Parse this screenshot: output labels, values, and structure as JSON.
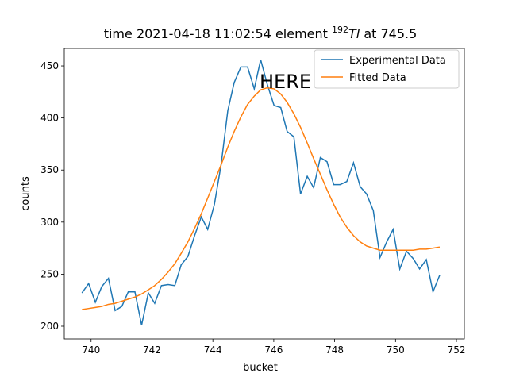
{
  "chart_data": {
    "type": "line",
    "title": {
      "lead": "time 2021-04-18 11:02:54 element ",
      "sup": "192",
      "symbol": "Tl",
      "tail": " at 745.5"
    },
    "x_label": "bucket",
    "y_label": "counts",
    "annotation": "HERE",
    "annotation_color": "#ff0000",
    "x": [
      739.7,
      739.92,
      740.14,
      740.35,
      740.57,
      740.79,
      741.01,
      741.22,
      741.44,
      741.66,
      741.88,
      742.09,
      742.31,
      742.53,
      742.75,
      742.96,
      743.18,
      743.4,
      743.62,
      743.83,
      744.05,
      744.27,
      744.49,
      744.7,
      744.92,
      745.14,
      745.36,
      745.57,
      745.79,
      746.01,
      746.23,
      746.44,
      746.66,
      746.88,
      747.1,
      747.31,
      747.53,
      747.75,
      747.97,
      748.18,
      748.4,
      748.62,
      748.84,
      749.05,
      749.27,
      749.49,
      749.71,
      749.92,
      750.14,
      750.36,
      750.58,
      750.79,
      751.01,
      751.23,
      751.45
    ],
    "series": [
      {
        "name": "Experimental Data",
        "color": "#1f77b4",
        "values": [
          232,
          241,
          223,
          238,
          246,
          215,
          219,
          233,
          233,
          201,
          232,
          222,
          239,
          240,
          239,
          259,
          267,
          287,
          305,
          293,
          317,
          355,
          407,
          434,
          449,
          449,
          428,
          456,
          432,
          412,
          410,
          387,
          382,
          327,
          344,
          333,
          362,
          358,
          336,
          336,
          339,
          357,
          334,
          327,
          311,
          266,
          281,
          293,
          255,
          272,
          265,
          255,
          264,
          233,
          249
        ]
      },
      {
        "name": "Fitted Data",
        "color": "#ff7f0e",
        "values": [
          216,
          217,
          218,
          219,
          221,
          222,
          224,
          226,
          228,
          231,
          235,
          239,
          245,
          252,
          260,
          270,
          281,
          294,
          308,
          323,
          339,
          355,
          372,
          387,
          401,
          413,
          421,
          427,
          429,
          428,
          423,
          415,
          404,
          391,
          376,
          361,
          346,
          331,
          317,
          305,
          295,
          287,
          281,
          277,
          275,
          273,
          273,
          273,
          273,
          273,
          273,
          274,
          274,
          275,
          276
        ]
      }
    ],
    "xlim": [
      739.12,
      752.26
    ],
    "ylim": [
      187.8,
      466.8
    ],
    "xticks": [
      740,
      742,
      744,
      746,
      748,
      750,
      752
    ],
    "yticks": [
      200,
      250,
      300,
      350,
      400,
      450
    ],
    "grid": false,
    "legend": "upper right"
  }
}
